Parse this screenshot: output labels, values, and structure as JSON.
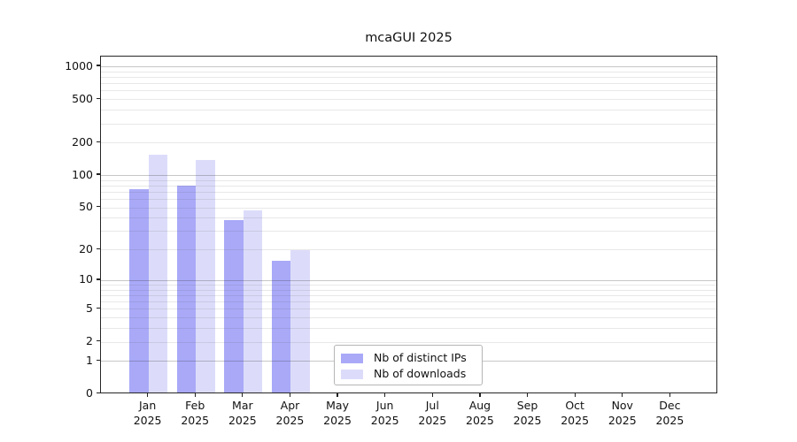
{
  "chart_data": {
    "type": "bar",
    "title": "mcaGUI 2025",
    "categories": [
      "Jan 2025",
      "Feb 2025",
      "Mar 2025",
      "Apr 2025",
      "May 2025",
      "Jun 2025",
      "Jul 2025",
      "Aug 2025",
      "Sep 2025",
      "Oct 2025",
      "Nov 2025",
      "Dec 2025"
    ],
    "series": [
      {
        "name": "Nb of distinct IPs",
        "color": "#a9a9f8",
        "values": [
          72,
          78,
          37,
          15,
          0,
          0,
          0,
          0,
          0,
          0,
          0,
          0
        ]
      },
      {
        "name": "Nb of downloads",
        "color": "#dcdcfa",
        "values": [
          150,
          133,
          46,
          19,
          0,
          0,
          0,
          0,
          0,
          0,
          0,
          0
        ]
      }
    ],
    "xlabel": "",
    "ylabel": "",
    "y_ticks": [
      0,
      1,
      2,
      5,
      10,
      20,
      50,
      100,
      200,
      500,
      1000
    ],
    "y_scale": "log10(1+v)",
    "ylim": [
      0,
      1230
    ],
    "grid": {
      "major_at": [
        1,
        10,
        100,
        1000
      ],
      "minor": "log-decades",
      "visible": true
    },
    "legend_position": "lower-center-inside",
    "bar_layout": "paired: distinct IPs left of month tick, downloads right of month tick"
  }
}
